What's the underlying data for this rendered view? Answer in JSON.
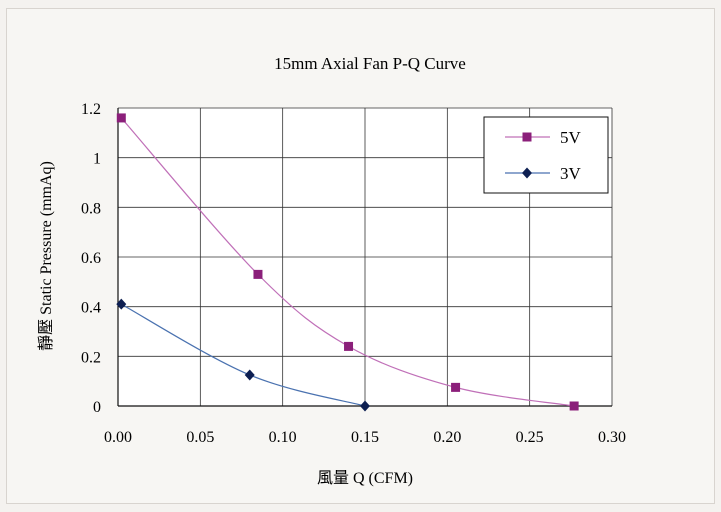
{
  "chart_data": {
    "type": "line",
    "title": "15mm Axial Fan P-Q Curve",
    "xlabel": "風量  Q (CFM)",
    "ylabel": "靜壓  Static Pressure (mmAq)",
    "xlim": [
      0,
      0.3
    ],
    "ylim": [
      0,
      1.2
    ],
    "x_ticks": [
      "0.00",
      "0.05",
      "0.10",
      "0.15",
      "0.20",
      "0.25",
      "0.30"
    ],
    "y_ticks": [
      "0",
      "0.2",
      "0.4",
      "0.6",
      "0.8",
      "1",
      "1.2"
    ],
    "grid": true,
    "legend_position": "top-right",
    "series": [
      {
        "name": "5V",
        "color": "#c070b8",
        "marker_color": "#8b1f7a",
        "marker": "square",
        "points": [
          [
            0.002,
            1.16
          ],
          [
            0.085,
            0.53
          ],
          [
            0.14,
            0.24
          ],
          [
            0.205,
            0.075
          ],
          [
            0.277,
            0.0
          ]
        ]
      },
      {
        "name": "3V",
        "color": "#4a72b0",
        "marker_color": "#0d1f52",
        "marker": "diamond",
        "points": [
          [
            0.002,
            0.41
          ],
          [
            0.08,
            0.125
          ],
          [
            0.15,
            0.0
          ]
        ]
      }
    ]
  }
}
